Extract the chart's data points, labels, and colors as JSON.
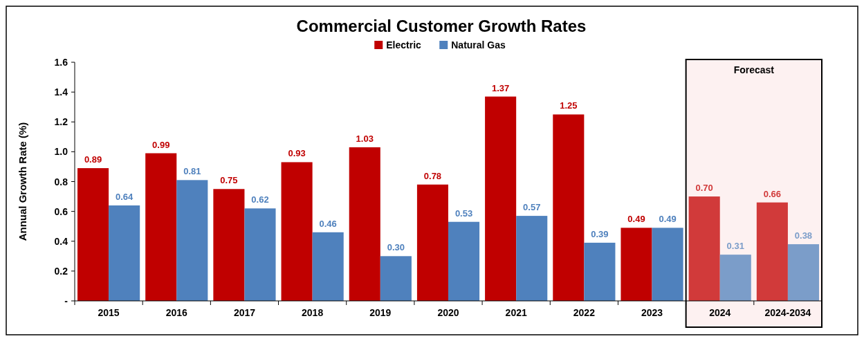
{
  "chart_data": {
    "type": "bar",
    "title": "Commercial Customer Growth Rates",
    "ylabel": "Annual Growth Rate (%)",
    "categories": [
      "2015",
      "2016",
      "2017",
      "2018",
      "2019",
      "2020",
      "2021",
      "2022",
      "2023",
      "2024",
      "2024-2034"
    ],
    "series": [
      {
        "name": "Electric",
        "color": "#c00000",
        "colors": [
          "#c00000",
          "#c00000",
          "#c00000",
          "#c00000",
          "#c00000",
          "#c00000",
          "#c00000",
          "#c00000",
          "#c00000",
          "#d13a3a",
          "#d13a3a"
        ],
        "values": [
          0.89,
          0.99,
          0.75,
          0.93,
          1.03,
          0.78,
          1.37,
          1.25,
          0.49,
          0.7,
          0.66
        ],
        "value_labels": [
          "0.89",
          "0.99",
          "0.75",
          "0.93",
          "1.03",
          "0.78",
          "1.37",
          "1.25",
          "0.49",
          "0.70",
          "0.66"
        ]
      },
      {
        "name": "Natural Gas",
        "color": "#4f81bd",
        "colors": [
          "#4f81bd",
          "#4f81bd",
          "#4f81bd",
          "#4f81bd",
          "#4f81bd",
          "#4f81bd",
          "#4f81bd",
          "#4f81bd",
          "#4f81bd",
          "#7b9dc9",
          "#7b9dc9"
        ],
        "values": [
          0.64,
          0.81,
          0.62,
          0.46,
          0.3,
          0.53,
          0.57,
          0.39,
          0.49,
          0.31,
          0.38
        ],
        "value_labels": [
          "0.64",
          "0.81",
          "0.62",
          "0.46",
          "0.30",
          "0.53",
          "0.57",
          "0.39",
          "0.49",
          "0.31",
          "0.38"
        ]
      }
    ],
    "ylim": [
      0,
      1.6
    ],
    "yticks": [
      {
        "value": 0,
        "label": "-"
      },
      0.2,
      0.4,
      0.6,
      0.8,
      {
        "value": 1,
        "label": "1.0"
      },
      1.2,
      1.4,
      1.6
    ],
    "bands": [
      {
        "axis": "x",
        "from": "2024",
        "to": "2024-2034",
        "label": "Forecast",
        "color": "#fdf1f1"
      }
    ],
    "legend": "top",
    "grid": false
  }
}
